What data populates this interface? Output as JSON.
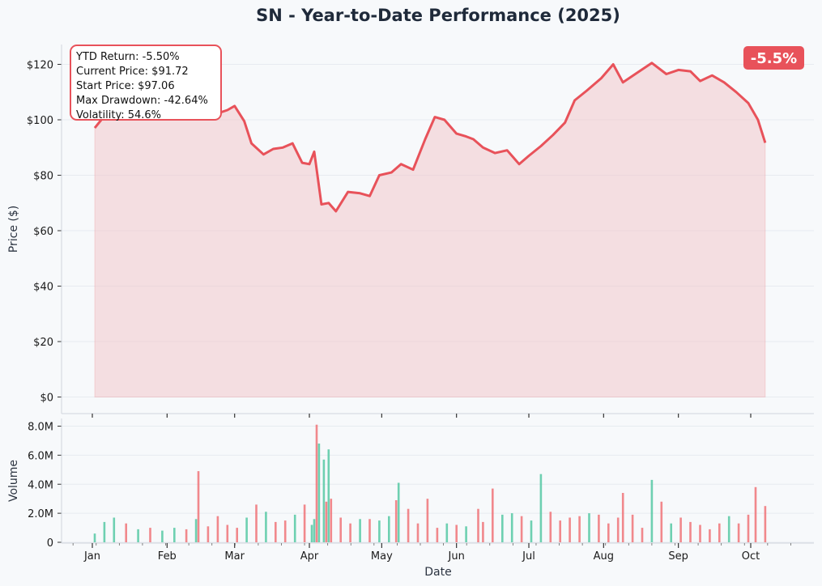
{
  "chart_data": {
    "type": "line",
    "title": "SN - Year-to-Date Performance (2025)",
    "xlabel": "Date",
    "ylabel": "Price ($)",
    "ylabel_volume": "Volume",
    "x_tick_labels": [
      "Jan",
      "Feb",
      "Mar",
      "Apr",
      "May",
      "Jun",
      "Jul",
      "Aug",
      "Sep",
      "Oct"
    ],
    "y_ticks": [
      "$0",
      "$20",
      "$40",
      "$60",
      "$80",
      "$100",
      "$120"
    ],
    "volume_ticks": [
      "0",
      "2.0M",
      "4.0M",
      "6.0M",
      "8.0M"
    ],
    "ylim": [
      0,
      127
    ],
    "volume_ylim": [
      0,
      8.2
    ],
    "badge": "-5.5%",
    "stats_lines": [
      "YTD Return: -5.50%",
      "Current Price: $91.72",
      "Start Price: $97.06",
      "Max Drawdown: -42.64%",
      "Volatility: 54.6%"
    ],
    "colors": {
      "line": "#e8525a",
      "fill": "#f2c4c7",
      "up": "#5ecba8",
      "down": "#f07b80",
      "badge": "#e8525a"
    },
    "price_series": {
      "name": "Price",
      "x": [
        "2025-01-02",
        "2025-01-08",
        "2025-01-14",
        "2025-01-20",
        "2025-01-26",
        "2025-02-01",
        "2025-02-07",
        "2025-02-12",
        "2025-02-16",
        "2025-02-21",
        "2025-02-26",
        "2025-03-01",
        "2025-03-05",
        "2025-03-08",
        "2025-03-13",
        "2025-03-17",
        "2025-03-21",
        "2025-03-25",
        "2025-03-29",
        "2025-04-01",
        "2025-04-03",
        "2025-04-06",
        "2025-04-09",
        "2025-04-12",
        "2025-04-17",
        "2025-04-22",
        "2025-04-26",
        "2025-04-30",
        "2025-05-05",
        "2025-05-09",
        "2025-05-14",
        "2025-05-19",
        "2025-05-23",
        "2025-05-27",
        "2025-06-01",
        "2025-06-05",
        "2025-06-08",
        "2025-06-12",
        "2025-06-17",
        "2025-06-22",
        "2025-06-27",
        "2025-07-01",
        "2025-07-06",
        "2025-07-11",
        "2025-07-16",
        "2025-07-20",
        "2025-07-25",
        "2025-07-31",
        "2025-08-05",
        "2025-08-09",
        "2025-08-15",
        "2025-08-21",
        "2025-08-27",
        "2025-09-01",
        "2025-09-06",
        "2025-09-10",
        "2025-09-15",
        "2025-09-20",
        "2025-09-25",
        "2025-09-30",
        "2025-10-04",
        "2025-10-07"
      ],
      "values": [
        97.06,
        103.5,
        106.0,
        109.0,
        111.5,
        113.0,
        110.5,
        112.0,
        109.0,
        102.0,
        103.5,
        105.0,
        99.5,
        91.5,
        87.5,
        89.5,
        90.0,
        91.5,
        84.5,
        84.0,
        88.5,
        69.5,
        70.0,
        67.0,
        74.0,
        73.5,
        72.5,
        80.0,
        81.0,
        84.0,
        82.0,
        93.0,
        101.0,
        100.0,
        95.0,
        94.0,
        93.0,
        90.0,
        88.0,
        89.0,
        84.0,
        87.0,
        90.5,
        94.5,
        99.0,
        107.0,
        110.5,
        115.0,
        120.0,
        113.5,
        117.0,
        120.5,
        116.5,
        118.0,
        117.5,
        114.0,
        116.0,
        113.5,
        110.0,
        106.0,
        100.0,
        91.72
      ]
    },
    "volume_series": {
      "name": "Volume",
      "x": [
        "2025-01-02",
        "2025-01-06",
        "2025-01-10",
        "2025-01-15",
        "2025-01-20",
        "2025-01-25",
        "2025-01-30",
        "2025-02-04",
        "2025-02-09",
        "2025-02-13",
        "2025-02-14",
        "2025-02-18",
        "2025-02-22",
        "2025-02-26",
        "2025-03-02",
        "2025-03-06",
        "2025-03-10",
        "2025-03-14",
        "2025-03-18",
        "2025-03-22",
        "2025-03-26",
        "2025-03-30",
        "2025-04-02",
        "2025-04-03",
        "2025-04-04",
        "2025-04-05",
        "2025-04-07",
        "2025-04-08",
        "2025-04-09",
        "2025-04-10",
        "2025-04-14",
        "2025-04-18",
        "2025-04-22",
        "2025-04-26",
        "2025-04-30",
        "2025-05-04",
        "2025-05-07",
        "2025-05-08",
        "2025-05-12",
        "2025-05-16",
        "2025-05-20",
        "2025-05-24",
        "2025-05-28",
        "2025-06-01",
        "2025-06-05",
        "2025-06-10",
        "2025-06-12",
        "2025-06-16",
        "2025-06-20",
        "2025-06-24",
        "2025-06-28",
        "2025-07-02",
        "2025-07-06",
        "2025-07-10",
        "2025-07-14",
        "2025-07-18",
        "2025-07-22",
        "2025-07-26",
        "2025-07-30",
        "2025-08-03",
        "2025-08-07",
        "2025-08-09",
        "2025-08-13",
        "2025-08-17",
        "2025-08-21",
        "2025-08-25",
        "2025-08-29",
        "2025-09-02",
        "2025-09-06",
        "2025-09-10",
        "2025-09-14",
        "2025-09-18",
        "2025-09-22",
        "2025-09-26",
        "2025-09-30",
        "2025-10-03",
        "2025-10-07"
      ],
      "values": [
        0.6,
        1.4,
        1.7,
        1.3,
        0.9,
        1.0,
        0.8,
        1.0,
        0.9,
        1.6,
        4.9,
        1.1,
        1.8,
        1.2,
        1.0,
        1.7,
        2.6,
        2.1,
        1.4,
        1.5,
        1.9,
        2.6,
        1.2,
        1.6,
        8.1,
        6.8,
        5.7,
        2.8,
        6.4,
        3.0,
        1.7,
        1.3,
        1.6,
        1.6,
        1.5,
        1.8,
        2.9,
        4.1,
        2.3,
        1.3,
        3.0,
        1.0,
        1.3,
        1.2,
        1.1,
        2.3,
        1.4,
        3.7,
        1.9,
        2.0,
        1.8,
        1.5,
        4.7,
        2.1,
        1.5,
        1.7,
        1.8,
        2.0,
        1.9,
        1.3,
        1.7,
        3.4,
        1.9,
        1.0,
        4.3,
        2.8,
        1.3,
        1.7,
        1.4,
        1.2,
        0.9,
        1.3,
        1.8,
        1.3,
        1.9,
        3.8,
        2.5
      ],
      "direction": [
        "up",
        "up",
        "up",
        "down",
        "up",
        "down",
        "up",
        "up",
        "down",
        "up",
        "down",
        "down",
        "down",
        "down",
        "down",
        "up",
        "down",
        "up",
        "down",
        "down",
        "up",
        "down",
        "up",
        "up",
        "down",
        "up",
        "up",
        "down",
        "up",
        "down",
        "down",
        "down",
        "up",
        "down",
        "up",
        "up",
        "down",
        "up",
        "down",
        "down",
        "down",
        "down",
        "up",
        "down",
        "up",
        "down",
        "down",
        "down",
        "up",
        "up",
        "down",
        "up",
        "up",
        "down",
        "down",
        "down",
        "down",
        "up",
        "down",
        "down",
        "down",
        "down",
        "down",
        "down",
        "up",
        "down",
        "up",
        "down",
        "down",
        "down",
        "down",
        "down",
        "up",
        "down",
        "down",
        "down",
        "down"
      ]
    }
  }
}
